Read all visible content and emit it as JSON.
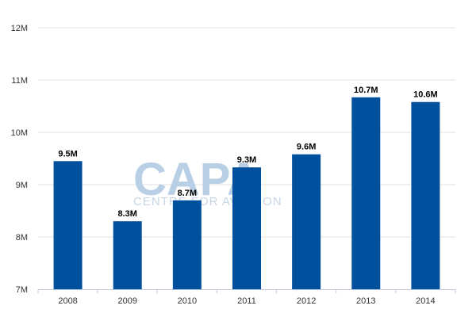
{
  "chart_data": {
    "type": "bar",
    "categories": [
      "2008",
      "2009",
      "2010",
      "2011",
      "2012",
      "2013",
      "2014"
    ],
    "values": [
      9.45,
      8.3,
      8.7,
      9.33,
      9.58,
      10.67,
      10.58
    ],
    "data_labels": [
      "9.5M",
      "8.3M",
      "8.7M",
      "9.3M",
      "9.6M",
      "10.7M",
      "10.6M"
    ],
    "y_ticks": [
      7,
      8,
      9,
      10,
      11,
      12
    ],
    "y_tick_labels": [
      "7M",
      "8M",
      "9M",
      "10M",
      "11M",
      "12M"
    ],
    "ylim": [
      7,
      12
    ],
    "title": "",
    "xlabel": "",
    "ylabel": "",
    "grid": true,
    "legend": "none",
    "bar_color": "#00509e"
  },
  "watermark": {
    "logo": "CAPA",
    "tagline": "CENTRE FOR AVIATION"
  }
}
